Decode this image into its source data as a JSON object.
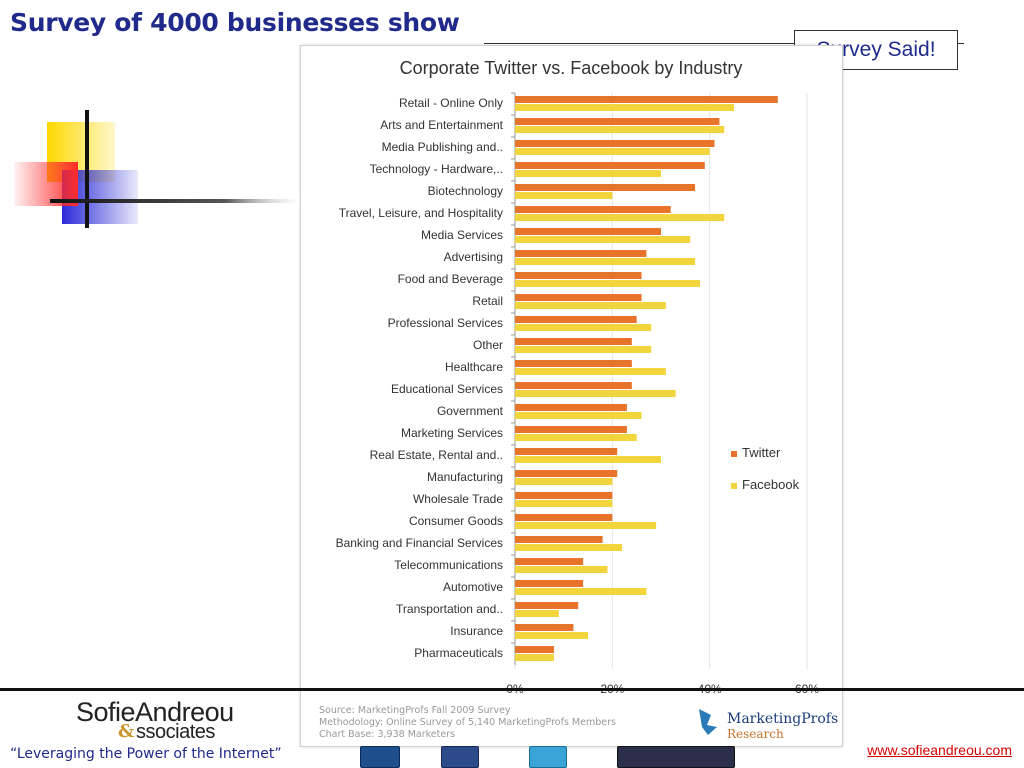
{
  "slide": {
    "title": "Survey of 4000 businesses show",
    "callout": "Survey Said!",
    "tagline": "“Leveraging the Power of the Internet”",
    "website": "www.sofieandreou.com",
    "logo_main": "SofieAndreou",
    "logo_sub": "ssociates",
    "logo_amp": "&",
    "icons": [
      "linkedin-icon",
      "facebook-icon",
      "twitter-icon",
      "blogger-icon"
    ]
  },
  "chart_data": {
    "type": "bar",
    "orientation": "horizontal",
    "title": "Corporate Twitter vs. Facebook by Industry",
    "categories": [
      "Retail - Online Only",
      "Arts and Entertainment",
      "Media Publishing and..",
      "Technology - Hardware,..",
      "Biotechnology",
      "Travel, Leisure, and Hospitality",
      "Media Services",
      "Advertising",
      "Food and Beverage",
      "Retail",
      "Professional Services",
      "Other",
      "Healthcare",
      "Educational Services",
      "Government",
      "Marketing Services",
      "Real Estate, Rental and..",
      "Manufacturing",
      "Wholesale Trade",
      "Consumer Goods",
      "Banking and Financial Services",
      "Telecommunications",
      "Automotive",
      "Transportation and..",
      "Insurance",
      "Pharmaceuticals"
    ],
    "series": [
      {
        "name": "Twitter",
        "color": "#e8732a",
        "values": [
          54,
          42,
          41,
          39,
          37,
          32,
          30,
          27,
          26,
          26,
          25,
          24,
          24,
          24,
          23,
          23,
          21,
          21,
          20,
          20,
          18,
          14,
          14,
          13,
          12,
          8
        ]
      },
      {
        "name": "Facebook",
        "color": "#f2d53c",
        "values": [
          45,
          43,
          40,
          30,
          20,
          43,
          36,
          37,
          38,
          31,
          28,
          28,
          31,
          33,
          26,
          25,
          30,
          20,
          20,
          29,
          22,
          19,
          27,
          9,
          15,
          8
        ]
      }
    ],
    "xticks": [
      "0%",
      "20%",
      "40%",
      "60%"
    ],
    "xlim": [
      0,
      60
    ],
    "legend_position": "right",
    "source": [
      "Source: MarketingProfs Fall 2009 Survey",
      "Methodology: Online Survey of 5,140 MarketingProfs Members",
      "Chart Base: 3,938 Marketers"
    ],
    "brand": "MarketingProfs",
    "brand_sub": "Research"
  }
}
